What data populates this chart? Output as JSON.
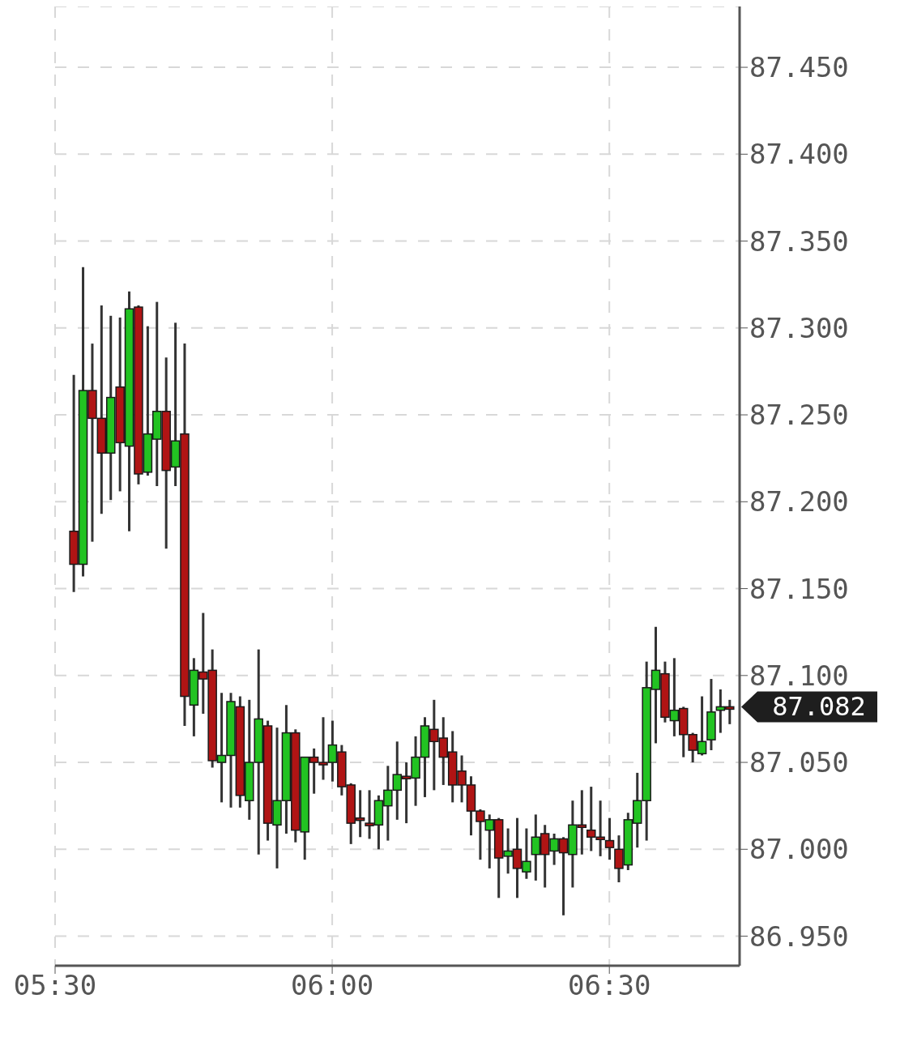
{
  "chart_data": {
    "type": "candlestick",
    "x": [
      5.5333,
      5.55,
      5.5667,
      5.5833,
      5.6,
      5.6167,
      5.6333,
      5.65,
      5.6667,
      5.6833,
      5.7,
      5.7167,
      5.7333,
      5.75,
      5.7667,
      5.7833,
      5.8,
      5.8167,
      5.8333,
      5.85,
      5.8667,
      5.8833,
      5.9,
      5.9167,
      5.9333,
      5.95,
      5.9667,
      5.9833,
      6,
      6.0167,
      6.0333,
      6.05,
      6.0667,
      6.0833,
      6.1,
      6.1167,
      6.1333,
      6.15,
      6.1667,
      6.1833,
      6.2,
      6.2167,
      6.2333,
      6.25,
      6.2667,
      6.2833,
      6.3,
      6.3167,
      6.3333,
      6.35,
      6.3667,
      6.3833,
      6.4,
      6.4167,
      6.4333,
      6.45,
      6.4667,
      6.4833,
      6.5,
      6.5167,
      6.5333,
      6.55,
      6.5667,
      6.5833,
      6.6,
      6.6167,
      6.6333,
      6.65,
      6.6667,
      6.6833,
      6.7,
      6.7167
    ],
    "ohlc": [
      [
        87.183,
        87.273,
        87.148,
        87.164
      ],
      [
        87.164,
        87.335,
        87.157,
        87.264
      ],
      [
        87.264,
        87.291,
        87.177,
        87.248
      ],
      [
        87.248,
        87.313,
        87.193,
        87.228
      ],
      [
        87.228,
        87.307,
        87.201,
        87.26
      ],
      [
        87.266,
        87.306,
        87.206,
        87.234
      ],
      [
        87.232,
        87.321,
        87.183,
        87.311
      ],
      [
        87.312,
        87.313,
        87.21,
        87.216
      ],
      [
        87.217,
        87.301,
        87.215,
        87.239
      ],
      [
        87.236,
        87.315,
        87.209,
        87.252
      ],
      [
        87.252,
        87.283,
        87.173,
        87.218
      ],
      [
        87.22,
        87.303,
        87.209,
        87.235
      ],
      [
        87.239,
        87.291,
        87.071,
        87.088
      ],
      [
        87.083,
        87.11,
        87.065,
        87.103
      ],
      [
        87.102,
        87.136,
        87.078,
        87.098
      ],
      [
        87.103,
        87.115,
        87.047,
        87.051
      ],
      [
        87.05,
        87.09,
        87.027,
        87.054
      ],
      [
        87.054,
        87.09,
        87.024,
        87.085
      ],
      [
        87.082,
        87.088,
        87.024,
        87.031
      ],
      [
        87.028,
        87.086,
        87.017,
        87.05
      ],
      [
        87.05,
        87.115,
        86.997,
        87.075
      ],
      [
        87.071,
        87.074,
        87.005,
        87.015
      ],
      [
        87.014,
        87.07,
        86.989,
        87.028
      ],
      [
        87.028,
        87.083,
        87.009,
        87.067
      ],
      [
        87.067,
        87.069,
        87.004,
        87.011
      ],
      [
        87.01,
        87.053,
        86.994,
        87.053
      ],
      [
        87.053,
        87.058,
        87.032,
        87.05
      ],
      [
        87.05,
        87.076,
        87.04,
        87.05
      ],
      [
        87.05,
        87.074,
        87.039,
        87.06
      ],
      [
        87.056,
        87.06,
        87.031,
        87.036
      ],
      [
        87.037,
        87.038,
        87.003,
        87.015
      ],
      [
        87.018,
        87.034,
        87.007,
        87.017
      ],
      [
        87.015,
        87.034,
        87.006,
        87.014
      ],
      [
        87.014,
        87.031,
        87.0,
        87.028
      ],
      [
        87.025,
        87.048,
        87.005,
        87.034
      ],
      [
        87.034,
        87.062,
        87.017,
        87.043
      ],
      [
        87.041,
        87.05,
        87.015,
        87.042
      ],
      [
        87.041,
        87.065,
        87.025,
        87.053
      ],
      [
        87.053,
        87.076,
        87.03,
        87.071
      ],
      [
        87.069,
        87.086,
        87.034,
        87.062
      ],
      [
        87.064,
        87.076,
        87.037,
        87.053
      ],
      [
        87.056,
        87.068,
        87.027,
        87.037
      ],
      [
        87.045,
        87.054,
        87.027,
        87.037
      ],
      [
        87.037,
        87.042,
        87.008,
        87.022
      ],
      [
        87.022,
        87.023,
        86.994,
        87.016
      ],
      [
        87.011,
        87.02,
        86.989,
        87.017
      ],
      [
        87.017,
        87.018,
        86.972,
        86.995
      ],
      [
        86.996,
        87.012,
        86.986,
        86.999
      ],
      [
        87.0,
        87.018,
        86.972,
        86.989
      ],
      [
        86.987,
        87.012,
        86.983,
        86.993
      ],
      [
        86.997,
        87.02,
        86.982,
        87.007
      ],
      [
        87.009,
        87.014,
        86.978,
        86.997
      ],
      [
        86.999,
        87.009,
        86.991,
        87.006
      ],
      [
        87.006,
        87.007,
        86.962,
        86.998
      ],
      [
        86.997,
        87.028,
        86.978,
        87.014
      ],
      [
        87.014,
        87.034,
        86.997,
        87.014
      ],
      [
        87.011,
        87.036,
        86.999,
        87.007
      ],
      [
        87.007,
        87.028,
        86.996,
        87.007
      ],
      [
        87.005,
        87.018,
        86.994,
        87.001
      ],
      [
        87.0,
        87.008,
        86.981,
        86.989
      ],
      [
        86.991,
        87.021,
        86.988,
        87.017
      ],
      [
        87.015,
        87.044,
        87.001,
        87.028
      ],
      [
        87.028,
        87.108,
        87.005,
        87.093
      ],
      [
        87.092,
        87.128,
        87.061,
        87.103
      ],
      [
        87.101,
        87.108,
        87.073,
        87.076
      ],
      [
        87.074,
        87.11,
        87.065,
        87.08
      ],
      [
        87.081,
        87.082,
        87.053,
        87.066
      ],
      [
        87.066,
        87.067,
        87.05,
        87.057
      ],
      [
        87.055,
        87.088,
        87.054,
        87.062
      ],
      [
        87.063,
        87.098,
        87.057,
        87.079
      ],
      [
        87.08,
        87.092,
        87.067,
        87.082
      ],
      [
        87.082,
        87.086,
        87.072,
        87.082
      ]
    ],
    "colors": [
      "#b01414",
      "#22c322",
      "#b01414",
      "#b01414",
      "#22c322",
      "#b01414",
      "#22c322",
      "#b01414",
      "#22c322",
      "#22c322",
      "#b01414",
      "#22c322",
      "#b01414",
      "#22c322",
      "#b01414",
      "#b01414",
      "#22c322",
      "#22c322",
      "#b01414",
      "#22c322",
      "#22c322",
      "#b01414",
      "#22c322",
      "#22c322",
      "#b01414",
      "#22c322",
      "#b01414",
      "#b01414",
      "#22c322",
      "#b01414",
      "#b01414",
      "#b01414",
      "#b01414",
      "#22c322",
      "#22c322",
      "#22c322",
      "#b01414",
      "#22c322",
      "#22c322",
      "#b01414",
      "#b01414",
      "#b01414",
      "#b01414",
      "#b01414",
      "#b01414",
      "#22c322",
      "#b01414",
      "#22c322",
      "#b01414",
      "#22c322",
      "#22c322",
      "#b01414",
      "#22c322",
      "#b01414",
      "#22c322",
      "#b01414",
      "#b01414",
      "#b01414",
      "#b01414",
      "#b01414",
      "#22c322",
      "#22c322",
      "#22c322",
      "#22c322",
      "#b01414",
      "#22c322",
      "#b01414",
      "#b01414",
      "#22c322",
      "#22c322",
      "#22c322",
      "#b01414"
    ],
    "xlim": [
      5.5,
      6.735
    ],
    "xticks": [
      {
        "value": 5.5,
        "label": "05:30"
      },
      {
        "value": 6,
        "label": "06:00"
      },
      {
        "value": 6.5,
        "label": "06:30"
      }
    ],
    "ylim": [
      86.933,
      87.485
    ],
    "yticks": [
      {
        "value": 86.95,
        "label": "86.950"
      },
      {
        "value": 87,
        "label": "87.000"
      },
      {
        "value": 87.05,
        "label": "87.050"
      },
      {
        "value": 87.1,
        "label": "87.100"
      },
      {
        "value": 87.15,
        "label": "87.150"
      },
      {
        "value": 87.2,
        "label": "87.200"
      },
      {
        "value": 87.25,
        "label": "87.250"
      },
      {
        "value": 87.3,
        "label": "87.300"
      },
      {
        "value": 87.35,
        "label": "87.350"
      },
      {
        "value": 87.4,
        "label": "87.400"
      },
      {
        "value": 87.45,
        "label": "87.450"
      }
    ],
    "grid": true,
    "annotations": [
      "87.082"
    ]
  }
}
